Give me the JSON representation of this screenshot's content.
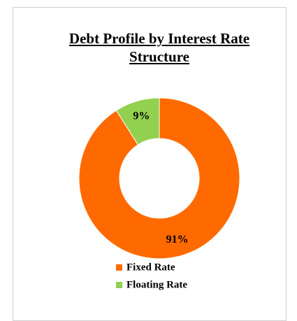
{
  "chart_data": {
    "type": "donut",
    "title": "Debt Profile by Interest Rate Structure",
    "categories": [
      "Fixed Rate",
      "Floating Rate"
    ],
    "values": [
      91,
      9
    ],
    "value_labels": [
      "91%",
      "9%"
    ],
    "colors": [
      "#ff6a00",
      "#92d050"
    ],
    "legend": "bottom"
  }
}
